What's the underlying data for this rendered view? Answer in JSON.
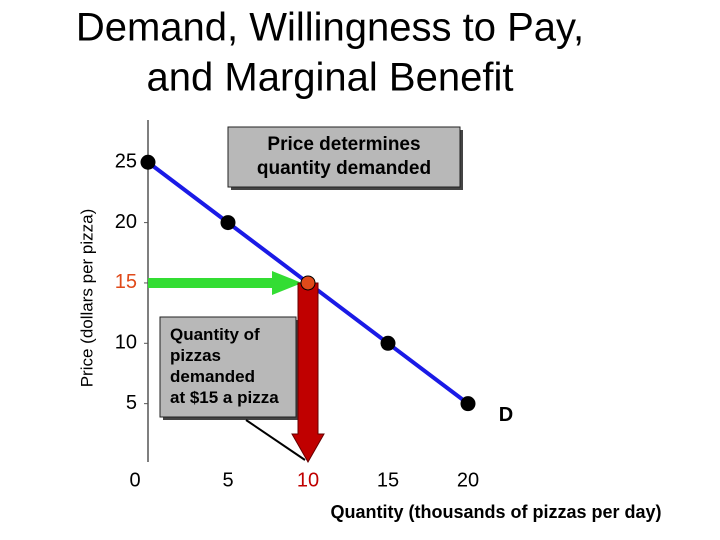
{
  "chart_data": {
    "type": "line",
    "title": [
      "Demand, Willingness to Pay,",
      "and Marginal Benefit"
    ],
    "x_label": "Quantity (thousands of pizzas per day)",
    "y_label": "Price (dollars per pizza)",
    "xlim": [
      0,
      22
    ],
    "ylim": [
      0,
      28.5
    ],
    "xticks": [
      0,
      5,
      10,
      15,
      20
    ],
    "yticks": [
      5,
      10,
      15,
      20,
      25
    ],
    "grid": false,
    "series": [
      {
        "name": "D",
        "color": "#1a1ae6",
        "x": [
          0,
          5,
          10,
          15,
          20
        ],
        "values": [
          25,
          20,
          15,
          10,
          5
        ]
      }
    ],
    "marker_color": "#000000",
    "highlight_index": 2,
    "highlight_color": "#e04a1a",
    "price_arrow_color": "#33dd33",
    "quantity_arrow_color": "#c00000",
    "annotations": [
      {
        "text": [
          "Price determines",
          "quantity demanded"
        ]
      },
      {
        "text": [
          "Quantity of",
          "pizzas",
          "demanded",
          "at $15 a pizza"
        ]
      }
    ]
  }
}
